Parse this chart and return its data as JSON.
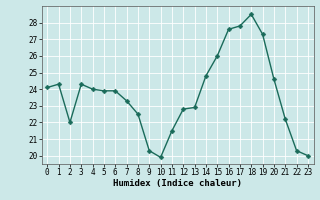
{
  "x": [
    0,
    1,
    2,
    3,
    4,
    5,
    6,
    7,
    8,
    9,
    10,
    11,
    12,
    13,
    14,
    15,
    16,
    17,
    18,
    19,
    20,
    21,
    22,
    23
  ],
  "y": [
    24.1,
    24.3,
    22.0,
    24.3,
    24.0,
    23.9,
    23.9,
    23.3,
    22.5,
    20.3,
    19.9,
    21.5,
    22.8,
    22.9,
    24.8,
    26.0,
    27.6,
    27.8,
    28.5,
    27.3,
    24.6,
    22.2,
    20.3,
    20.0
  ],
  "line_color": "#1a6b5a",
  "marker_color": "#1a6b5a",
  "bg_color": "#cce8e8",
  "grid_color": "#ffffff",
  "xlabel": "Humidex (Indice chaleur)",
  "ylim": [
    19.5,
    29.0
  ],
  "xlim": [
    -0.5,
    23.5
  ],
  "yticks": [
    20,
    21,
    22,
    23,
    24,
    25,
    26,
    27,
    28
  ],
  "xticks": [
    0,
    1,
    2,
    3,
    4,
    5,
    6,
    7,
    8,
    9,
    10,
    11,
    12,
    13,
    14,
    15,
    16,
    17,
    18,
    19,
    20,
    21,
    22,
    23
  ],
  "xlabel_fontsize": 6.5,
  "tick_fontsize": 5.5,
  "linewidth": 1.0,
  "markersize": 2.5
}
